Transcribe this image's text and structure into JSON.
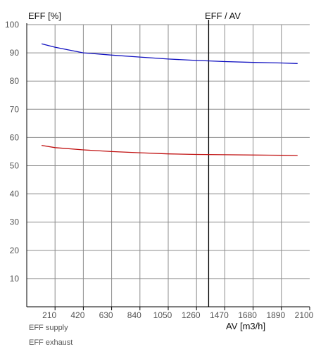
{
  "chart_data": {
    "type": "line",
    "ylabel": "EFF [%]",
    "xlabel": "AV [m3/h]",
    "marker_label": "EFF / AV",
    "xlim": [
      0,
      2100
    ],
    "ylim": [
      0,
      100
    ],
    "x_ticks": [
      210,
      420,
      630,
      840,
      1050,
      1260,
      1470,
      1680,
      1890,
      2100
    ],
    "y_ticks": [
      10,
      20,
      30,
      40,
      50,
      60,
      70,
      80,
      90,
      100
    ],
    "grid": true,
    "marker_x": 1350,
    "legend_position": "bottom-left",
    "series": [
      {
        "name": "EFF supply",
        "color": "#1010c0",
        "x": [
          110,
          210,
          420,
          630,
          840,
          1050,
          1260,
          1470,
          1680,
          1890,
          2010
        ],
        "y": [
          93.2,
          92.0,
          90.0,
          89.2,
          88.5,
          87.8,
          87.3,
          86.9,
          86.6,
          86.4,
          86.2
        ]
      },
      {
        "name": "EFF exhaust",
        "color": "#c01010",
        "x": [
          110,
          210,
          420,
          630,
          840,
          1050,
          1260,
          1470,
          1680,
          1890,
          2010
        ],
        "y": [
          57.2,
          56.4,
          55.6,
          55.0,
          54.6,
          54.2,
          54.0,
          53.9,
          53.8,
          53.7,
          53.6
        ]
      }
    ],
    "colors": {
      "grid": "#8c8c8c",
      "axis": "#000000",
      "marker": "#000000",
      "tick_label": "#555555"
    }
  }
}
